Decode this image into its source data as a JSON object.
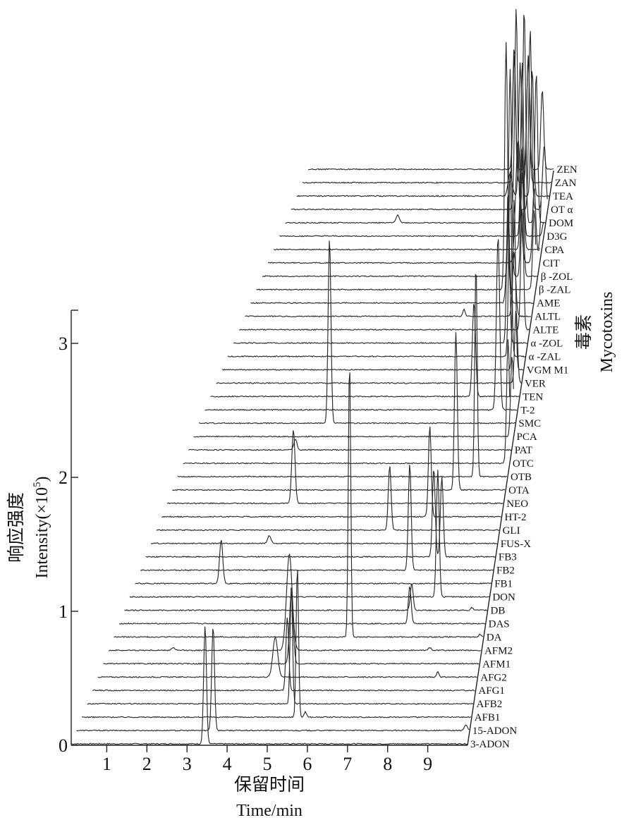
{
  "chart_data": {
    "type": "line",
    "xlabel_cn": "保留时间",
    "xlabel": "Time/min",
    "ylabel_cn": "响应强度",
    "ylabel": "Intensity(×10",
    "ylabel_exp": "5",
    "ylabel_close": ")",
    "zlabel_cn": "毒素",
    "zlabel": "Mycotoxins",
    "x_ticks": [
      "1",
      "2",
      "3",
      "4",
      "5",
      "6",
      "7",
      "8",
      "9"
    ],
    "x_tick_values": [
      1,
      2,
      3,
      4,
      5,
      6,
      7,
      8,
      9
    ],
    "xlim": [
      0,
      10
    ],
    "y_ticks": [
      "0",
      "1",
      "2",
      "3"
    ],
    "y_tick_values": [
      0,
      1,
      2,
      3
    ],
    "ylim": [
      0,
      3.3
    ],
    "series": [
      {
        "name": "3-ADON",
        "peaks": [
          [
            3.45,
            0.88,
            0.035
          ]
        ]
      },
      {
        "name": "15-ADON",
        "peaks": [
          [
            3.6,
            0.78,
            0.035
          ],
          [
            9.9,
            0.04,
            0.04
          ]
        ]
      },
      {
        "name": "AFB1",
        "peaks": [
          [
            5.65,
            1.13,
            0.03
          ],
          [
            5.85,
            0.04,
            0.03
          ]
        ]
      },
      {
        "name": "AFB2",
        "peaks": [
          [
            5.45,
            0.88,
            0.03
          ]
        ]
      },
      {
        "name": "AFG1",
        "peaks": [
          [
            5.3,
            0.55,
            0.035
          ]
        ]
      },
      {
        "name": "AFG2",
        "peaks": [
          [
            4.95,
            0.3,
            0.06
          ],
          [
            9.0,
            0.04,
            0.03
          ]
        ]
      },
      {
        "name": "AFM1",
        "peaks": [
          [
            5.3,
            0.53,
            0.045
          ]
        ]
      },
      {
        "name": "AFM2",
        "peaks": [
          [
            5.2,
            0.72,
            0.07
          ],
          [
            2.3,
            0.02,
            0.04
          ],
          [
            8.7,
            0.02,
            0.04
          ]
        ]
      },
      {
        "name": "DA",
        "peaks": [
          [
            6.65,
            2.07,
            0.03
          ],
          [
            9.9,
            0.02,
            0.03
          ]
        ]
      },
      {
        "name": "DAS",
        "peaks": [
          [
            8.1,
            0.28,
            0.035
          ]
        ]
      },
      {
        "name": "DB",
        "peaks": [
          [
            8.1,
            0.2,
            0.035
          ],
          [
            9.6,
            0.02,
            0.03
          ]
        ]
      },
      {
        "name": "DON",
        "peaks": [
          [
            8.7,
            0.95,
            0.035
          ]
        ]
      },
      {
        "name": "FB1",
        "peaks": [
          [
            3.25,
            0.33,
            0.04
          ]
        ]
      },
      {
        "name": "FB2",
        "peaks": [
          [
            7.9,
            0.8,
            0.035
          ]
        ]
      },
      {
        "name": "FB3",
        "peaks": [
          [
            8.45,
            0.66,
            0.035
          ],
          [
            8.65,
            0.6,
            0.035
          ]
        ]
      },
      {
        "name": "FUS-X",
        "peaks": [
          [
            4.3,
            0.06,
            0.04
          ]
        ]
      },
      {
        "name": "GLI",
        "peaks": [
          [
            7.25,
            0.48,
            0.035
          ]
        ]
      },
      {
        "name": "HT-2",
        "peaks": [
          [
            8.2,
            0.68,
            0.035
          ]
        ]
      },
      {
        "name": "NEO",
        "peaks": [
          [
            4.75,
            0.55,
            0.04
          ]
        ]
      },
      {
        "name": "OTA",
        "peaks": [
          [
            8.75,
            1.18,
            0.035
          ]
        ]
      },
      {
        "name": "OTB",
        "peaks": [
          [
            9.2,
            1.6,
            0.03
          ]
        ]
      },
      {
        "name": "OTC",
        "peaks": [
          [
            9.95,
            0.93,
            0.035
          ]
        ]
      },
      {
        "name": "PAT",
        "peaks": [
          [
            4.6,
            0.08,
            0.04
          ]
        ]
      },
      {
        "name": "PCA",
        "peaks": [
          [
            9.95,
            0.6,
            0.035
          ]
        ]
      },
      {
        "name": "SMC",
        "peaks": [
          [
            5.35,
            1.38,
            0.035
          ]
        ]
      },
      {
        "name": "T-2",
        "peaks": [
          [
            9.5,
            1.3,
            0.04
          ]
        ]
      },
      {
        "name": "TEN",
        "peaks": [
          [
            8.85,
            0.7,
            0.04
          ]
        ]
      },
      {
        "name": "VER",
        "peaks": [
          [
            9.85,
            0.55,
            0.035
          ]
        ]
      },
      {
        "name": "VGM M1",
        "peaks": [
          [
            9.75,
            1.28,
            0.035
          ]
        ]
      },
      {
        "name": "α-ZAL",
        "peaks": [
          [
            9.6,
            1.4,
            0.035
          ]
        ]
      },
      {
        "name": "α-ZOL",
        "peaks": [
          [
            9.5,
            1.15,
            0.035
          ]
        ]
      },
      {
        "name": "ALTE",
        "peaks": [
          [
            9.8,
            0.92,
            0.035
          ]
        ]
      },
      {
        "name": "ALTL",
        "peaks": [
          [
            8.3,
            0.05,
            0.03
          ],
          [
            9.55,
            0.48,
            0.04
          ]
        ]
      },
      {
        "name": "AME",
        "peaks": [
          [
            9.35,
            0.58,
            0.04
          ]
        ]
      },
      {
        "name": "β-ZAL",
        "peaks": [
          [
            9.25,
            1.85,
            0.035
          ],
          [
            9.95,
            0.6,
            0.035
          ]
        ]
      },
      {
        "name": "β-ZOL",
        "peaks": [
          [
            9.3,
            1.55,
            0.035
          ],
          [
            9.6,
            0.78,
            0.035
          ]
        ]
      },
      {
        "name": "CIT",
        "peaks": [
          [
            9.45,
            0.92,
            0.06
          ],
          [
            9.85,
            0.56,
            0.04
          ],
          [
            10.1,
            0.25,
            0.09
          ]
        ]
      },
      {
        "name": "CPA",
        "peaks": [
          [
            9.5,
            0.78,
            0.04
          ],
          [
            10.0,
            0.5,
            0.035
          ]
        ]
      },
      {
        "name": "D3G",
        "peaks": [
          [
            9.45,
            1.3,
            0.035
          ],
          [
            10.0,
            0.12,
            0.04
          ],
          [
            10.8,
            0.12,
            0.04
          ]
        ]
      },
      {
        "name": "DOM",
        "peaks": [
          [
            6.3,
            0.06,
            0.04
          ],
          [
            9.45,
            1.6,
            0.035
          ],
          [
            9.75,
            1.12,
            0.035
          ]
        ]
      },
      {
        "name": "OTα",
        "peaks": [
          [
            9.2,
            1.5,
            0.035
          ],
          [
            9.55,
            1.35,
            0.035
          ],
          [
            9.9,
            0.48,
            0.04
          ]
        ]
      },
      {
        "name": "TEA",
        "peaks": [
          [
            9.0,
            0.17,
            0.05
          ],
          [
            9.25,
            1.0,
            0.035
          ],
          [
            9.55,
            0.95,
            0.035
          ]
        ]
      },
      {
        "name": "ZAN",
        "peaks": [
          [
            9.05,
            0.95,
            0.035
          ],
          [
            9.4,
            0.95,
            0.035
          ],
          [
            10.1,
            1.45,
            0.035
          ],
          [
            10.4,
            0.5,
            0.04
          ]
        ]
      },
      {
        "name": "ZEN",
        "peaks": [
          [
            9.0,
            0.92,
            0.035
          ],
          [
            9.35,
            0.85,
            0.035
          ],
          [
            9.7,
            0.6,
            0.035
          ],
          [
            10.35,
            0.2,
            0.05
          ]
        ]
      }
    ],
    "series_labels_display": [
      "3-ADON",
      "15-ADON",
      "AFB1",
      "AFB2",
      "AFG1",
      "AFG2",
      "AFM1",
      "AFM2",
      "DA",
      "DAS",
      "DB",
      "DON",
      "FB1",
      "FB2",
      "FB3",
      "FUS-X",
      "GLI",
      "HT-2",
      "NEO",
      "OTA",
      "OTB",
      "OTC",
      "PAT",
      "PCA",
      "SMC",
      "T-2",
      "TEN",
      "VER",
      "VGM M1",
      "α -ZAL",
      "α -ZOL",
      "ALTE",
      "ALTL",
      "AME",
      "β -ZAL",
      "β -ZOL",
      "CIT",
      "CPA",
      "D3G",
      "DOM",
      "OT α",
      "TEA",
      "ZAN",
      "ZEN"
    ]
  }
}
